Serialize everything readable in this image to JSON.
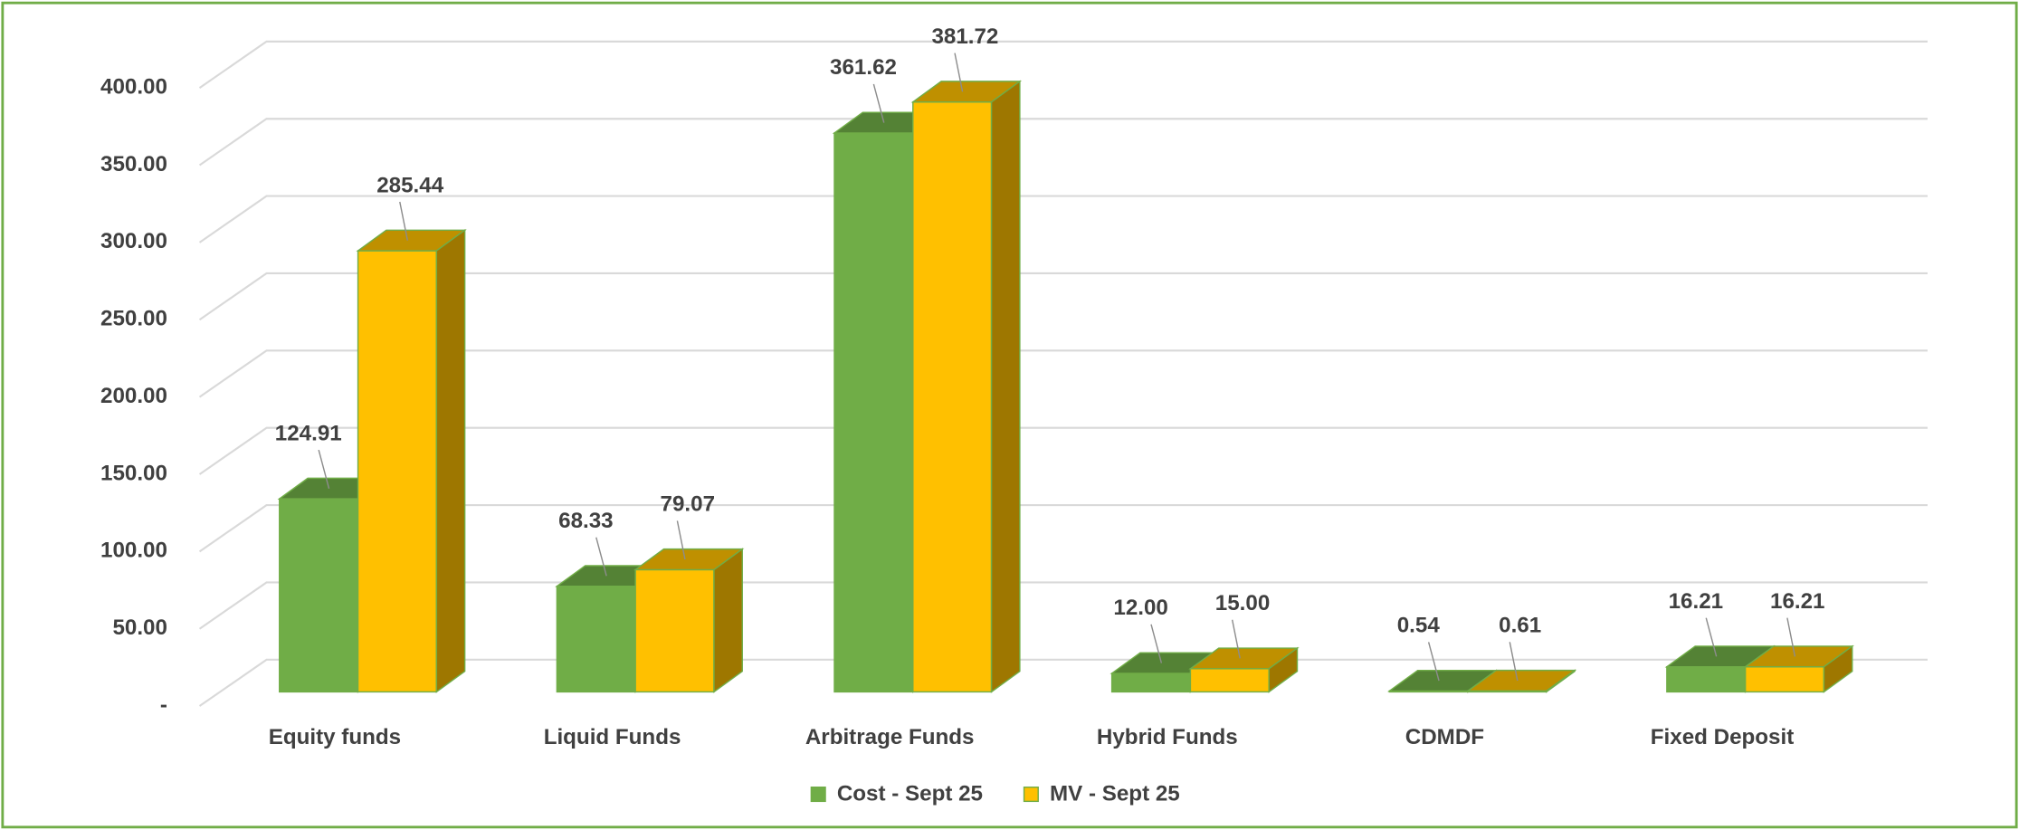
{
  "chart_data": {
    "type": "bar3d",
    "categories": [
      "Equity funds",
      "Liquid Funds",
      "Arbitrage Funds",
      "Hybrid Funds",
      "CDMDF",
      "Fixed Deposit"
    ],
    "series": [
      {
        "name": "Cost - Sept 25",
        "color": "#70ad47",
        "values": [
          124.91,
          68.33,
          361.62,
          12,
          0.54,
          16.21
        ],
        "value_labels": [
          "124.91",
          "68.33",
          "361.62",
          "12.00",
          "0.54",
          "16.21"
        ]
      },
      {
        "name": "MV - Sept 25",
        "color": "#ffc000",
        "values": [
          285.44,
          79.07,
          381.72,
          15,
          0.61,
          16.21
        ],
        "value_labels": [
          "285.44",
          "79.07",
          "381.72",
          "15.00",
          "0.61",
          "16.21"
        ]
      }
    ],
    "ylim": [
      0,
      400
    ],
    "yticks": [
      {
        "value": 0,
        "label": "-"
      },
      {
        "value": 50,
        "label": "50.00"
      },
      {
        "value": 100,
        "label": "100.00"
      },
      {
        "value": 150,
        "label": "150.00"
      },
      {
        "value": 200,
        "label": "200.00"
      },
      {
        "value": 250,
        "label": "250.00"
      },
      {
        "value": 300,
        "label": "300.00"
      },
      {
        "value": 350,
        "label": "350.00"
      },
      {
        "value": 400,
        "label": "400.00"
      }
    ],
    "grid": true,
    "legend": "bottom"
  }
}
